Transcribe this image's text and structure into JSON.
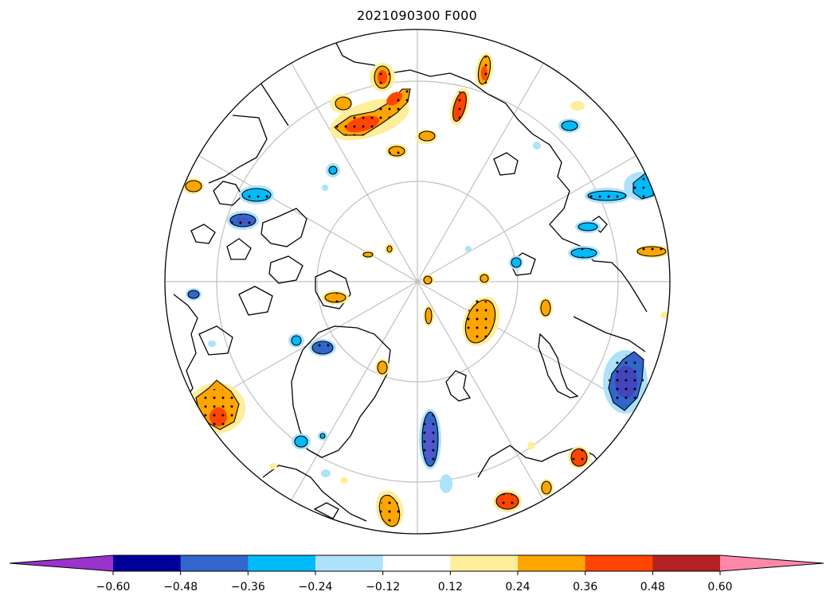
{
  "title": "2021090300 F000",
  "colorbar": {
    "extend": "both",
    "levels": [
      "−0.60",
      "−0.48",
      "−0.36",
      "−0.24",
      "−0.12",
      "0.12",
      "0.24",
      "0.36",
      "0.48",
      "0.60"
    ],
    "colors": [
      "#9933cc",
      "#000099",
      "#3366cc",
      "#00bbf9",
      "#aee2fb",
      "#ffffff",
      "#ffee99",
      "#ffa500",
      "#ff4500",
      "#b22222",
      "#ff88aa"
    ]
  },
  "map": {
    "projection": "north-polar-stereographic",
    "graticule_color": "#c0c0c0",
    "coastline_color": "#000000"
  }
}
